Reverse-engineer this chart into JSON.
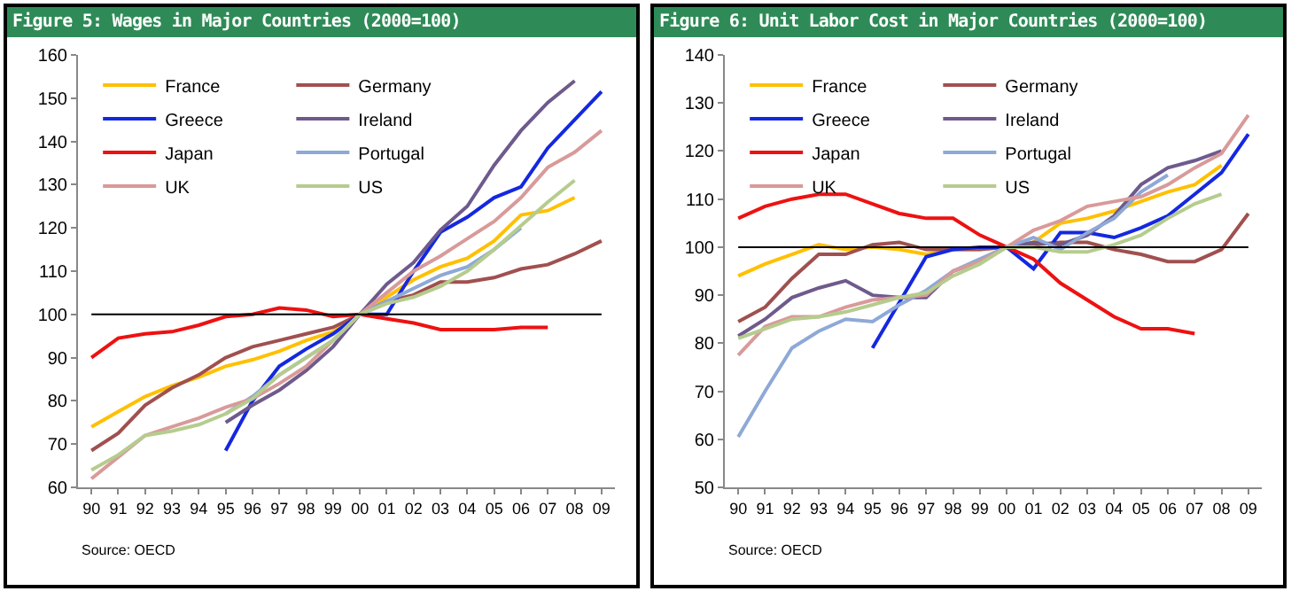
{
  "chart_data": [
    {
      "type": "line",
      "title": "Figure 5: Wages in Major Countries (2000=100)",
      "categories": [
        "90",
        "91",
        "92",
        "93",
        "94",
        "95",
        "96",
        "97",
        "98",
        "99",
        "00",
        "01",
        "02",
        "03",
        "04",
        "05",
        "06",
        "07",
        "08",
        "09"
      ],
      "series": [
        {
          "name": "France",
          "color": "#ffc000",
          "values": [
            74,
            77.5,
            81,
            83.5,
            85.5,
            88,
            89.5,
            91.5,
            94,
            96,
            100,
            104,
            108,
            111,
            113,
            117,
            123,
            124,
            127,
            null
          ]
        },
        {
          "name": "Germany",
          "color": "#a0504f",
          "values": [
            68.5,
            72.5,
            79,
            83,
            86,
            90,
            92.5,
            94,
            95.5,
            97,
            100,
            103,
            104.5,
            107.5,
            107.5,
            108.5,
            110.5,
            111.5,
            114,
            117
          ]
        },
        {
          "name": "Greece",
          "color": "#1428e0",
          "values": [
            null,
            null,
            null,
            null,
            null,
            68.5,
            80,
            88,
            92,
            95.5,
            100,
            100,
            110,
            119,
            122.5,
            127,
            129.5,
            138.5,
            145,
            151.5
          ]
        },
        {
          "name": "Ireland",
          "color": "#6e5a8c",
          "values": [
            null,
            null,
            null,
            null,
            null,
            75,
            79,
            82.5,
            87,
            92.5,
            100,
            107,
            112,
            119.5,
            125,
            134.5,
            142.5,
            149,
            154,
            null
          ]
        },
        {
          "name": "Japan",
          "color": "#ee1111",
          "values": [
            90,
            94.5,
            95.5,
            96,
            97.5,
            99.5,
            100,
            101.5,
            101,
            99.5,
            100,
            99,
            98,
            96.5,
            96.5,
            96.5,
            97,
            97,
            null,
            null
          ]
        },
        {
          "name": "Portugal",
          "color": "#8ea9d6",
          "values": [
            null,
            null,
            null,
            null,
            null,
            77,
            81,
            86,
            90,
            94,
            100,
            103,
            106,
            109,
            111,
            115,
            120,
            null,
            null,
            null
          ]
        },
        {
          "name": "UK",
          "color": "#d89a9a",
          "values": [
            62,
            67,
            72,
            74,
            76,
            78.5,
            80.5,
            84,
            88,
            94,
            100,
            105,
            110,
            113.5,
            117.5,
            121.5,
            127,
            134,
            137.5,
            142.5
          ]
        },
        {
          "name": "US",
          "color": "#b5cc8e",
          "values": [
            64,
            67.5,
            72,
            73,
            74.5,
            77,
            80.5,
            86,
            90,
            94,
            100,
            102.5,
            104,
            106.5,
            110,
            115,
            120.5,
            126,
            131,
            null
          ]
        }
      ],
      "ylim": [
        60,
        160
      ],
      "yticks": [
        60,
        70,
        80,
        90,
        100,
        110,
        120,
        130,
        140,
        150,
        160
      ],
      "grid": false,
      "legend": "top left",
      "marker": "none",
      "line_style": "solid",
      "ref_lines": [
        {
          "axis": "y",
          "value": 100,
          "color": "#000000"
        }
      ],
      "annotations": [
        "Source: OECD"
      ]
    },
    {
      "type": "line",
      "title": "Figure 6: Unit Labor Cost in Major Countries (2000=100)",
      "categories": [
        "90",
        "91",
        "92",
        "93",
        "94",
        "95",
        "96",
        "97",
        "98",
        "99",
        "00",
        "01",
        "02",
        "03",
        "04",
        "05",
        "06",
        "07",
        "08",
        "09"
      ],
      "series": [
        {
          "name": "France",
          "color": "#ffc000",
          "values": [
            94,
            96.5,
            98.5,
            100.5,
            99.5,
            100,
            99.5,
            98.5,
            99.5,
            99.5,
            100,
            101,
            105,
            106,
            107.5,
            109.5,
            111.5,
            113,
            117,
            null
          ]
        },
        {
          "name": "Germany",
          "color": "#a0504f",
          "values": [
            84.5,
            87.5,
            93.5,
            98.5,
            98.5,
            100.5,
            101,
            99.5,
            99.5,
            99.5,
            100,
            100.5,
            101,
            101,
            99.5,
            98.5,
            97,
            97,
            99.5,
            107
          ]
        },
        {
          "name": "Greece",
          "color": "#1428e0",
          "values": [
            null,
            null,
            null,
            null,
            null,
            79,
            88.5,
            98,
            99.5,
            100,
            100,
            95.5,
            103,
            103,
            102,
            104,
            106.5,
            111,
            115.5,
            123.5
          ]
        },
        {
          "name": "Ireland",
          "color": "#6e5a8c",
          "values": [
            81.5,
            85,
            89.5,
            91.5,
            93,
            90,
            89.5,
            89.5,
            95,
            97,
            100,
            101,
            100.5,
            102.5,
            106.5,
            113,
            116.5,
            118,
            120,
            null
          ]
        },
        {
          "name": "Japan",
          "color": "#ee1111",
          "values": [
            106,
            108.5,
            110,
            111,
            111,
            109,
            107,
            106,
            106,
            102.5,
            100,
            97.5,
            92.5,
            89,
            85.5,
            83,
            83,
            82,
            null,
            null
          ]
        },
        {
          "name": "Portugal",
          "color": "#8ea9d6",
          "values": [
            60.5,
            70,
            79,
            82.5,
            85,
            84.5,
            88,
            91,
            95,
            97.5,
            100,
            102,
            99.5,
            103,
            106,
            111.5,
            115,
            null,
            null,
            null
          ]
        },
        {
          "name": "UK",
          "color": "#d89a9a",
          "values": [
            77.5,
            83.5,
            85.5,
            85.5,
            87.5,
            89,
            89.5,
            90,
            95,
            97,
            100,
            103.5,
            105.5,
            108.5,
            109.5,
            110.5,
            113,
            116.5,
            119.5,
            127.5
          ]
        },
        {
          "name": "US",
          "color": "#b5cc8e",
          "values": [
            81,
            83,
            85,
            85.5,
            86.5,
            88,
            89.5,
            90.5,
            94,
            96.5,
            100,
            100,
            99,
            99,
            100.5,
            102.5,
            106,
            109,
            111,
            null
          ]
        }
      ],
      "ylim": [
        50,
        140
      ],
      "yticks": [
        50,
        60,
        70,
        80,
        90,
        100,
        110,
        120,
        130,
        140
      ],
      "grid": false,
      "legend": "top left",
      "marker": "none",
      "line_style": "solid",
      "ref_lines": [
        {
          "axis": "y",
          "value": 100,
          "color": "#000000"
        }
      ],
      "annotations": [
        "Source: OECD"
      ]
    }
  ]
}
